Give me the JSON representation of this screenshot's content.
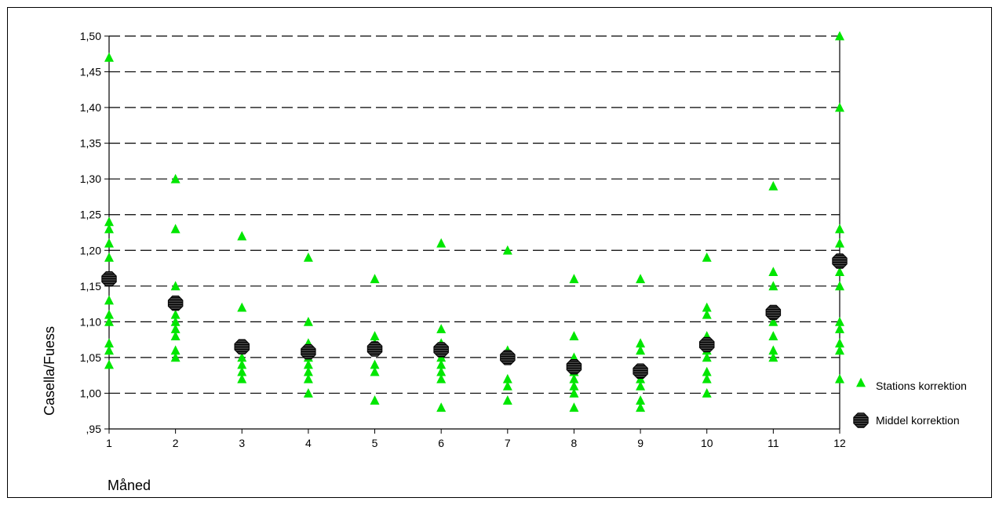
{
  "chart_data": {
    "type": "scatter",
    "title": "",
    "xlabel": "Måned",
    "ylabel": "Casella/Fuess",
    "xlim": [
      1,
      12
    ],
    "ylim": [
      0.95,
      1.5
    ],
    "x_ticks": [
      "1",
      "2",
      "3",
      "4",
      "5",
      "6",
      "7",
      "8",
      "9",
      "10",
      "11",
      "12"
    ],
    "y_ticks": [
      ",95",
      "1,00",
      "1,05",
      "1,10",
      "1,15",
      "1,20",
      "1,25",
      "1,30",
      "1,35",
      "1,40",
      "1,45",
      "1,50"
    ],
    "grid": "horizontal dashed",
    "legend_position": "right",
    "series": [
      {
        "name": "Stations korrektion",
        "marker": "triangle",
        "color": "#00e600",
        "points": [
          [
            1,
            1.47
          ],
          [
            1,
            1.24
          ],
          [
            1,
            1.23
          ],
          [
            1,
            1.21
          ],
          [
            1,
            1.19
          ],
          [
            1,
            1.13
          ],
          [
            1,
            1.11
          ],
          [
            1,
            1.1
          ],
          [
            1,
            1.07
          ],
          [
            1,
            1.06
          ],
          [
            1,
            1.04
          ],
          [
            2,
            1.3
          ],
          [
            2,
            1.23
          ],
          [
            2,
            1.15
          ],
          [
            2,
            1.11
          ],
          [
            2,
            1.1
          ],
          [
            2,
            1.09
          ],
          [
            2,
            1.08
          ],
          [
            2,
            1.06
          ],
          [
            2,
            1.05
          ],
          [
            3,
            1.22
          ],
          [
            3,
            1.12
          ],
          [
            3,
            1.05
          ],
          [
            3,
            1.04
          ],
          [
            3,
            1.03
          ],
          [
            3,
            1.02
          ],
          [
            4,
            1.19
          ],
          [
            4,
            1.1
          ],
          [
            4,
            1.07
          ],
          [
            4,
            1.05
          ],
          [
            4,
            1.04
          ],
          [
            4,
            1.03
          ],
          [
            4,
            1.02
          ],
          [
            4,
            1.0
          ],
          [
            5,
            1.16
          ],
          [
            5,
            1.08
          ],
          [
            5,
            1.07
          ],
          [
            5,
            1.04
          ],
          [
            5,
            1.03
          ],
          [
            5,
            0.99
          ],
          [
            6,
            1.21
          ],
          [
            6,
            1.09
          ],
          [
            6,
            1.07
          ],
          [
            6,
            1.05
          ],
          [
            6,
            1.04
          ],
          [
            6,
            1.03
          ],
          [
            6,
            1.02
          ],
          [
            6,
            0.98
          ],
          [
            7,
            1.2
          ],
          [
            7,
            1.06
          ],
          [
            7,
            1.02
          ],
          [
            7,
            1.01
          ],
          [
            7,
            0.99
          ],
          [
            8,
            1.16
          ],
          [
            8,
            1.08
          ],
          [
            8,
            1.05
          ],
          [
            8,
            1.03
          ],
          [
            8,
            1.02
          ],
          [
            8,
            1.01
          ],
          [
            8,
            1.0
          ],
          [
            8,
            0.98
          ],
          [
            9,
            1.16
          ],
          [
            9,
            1.07
          ],
          [
            9,
            1.06
          ],
          [
            9,
            1.02
          ],
          [
            9,
            1.01
          ],
          [
            9,
            0.99
          ],
          [
            9,
            0.98
          ],
          [
            10,
            1.19
          ],
          [
            10,
            1.12
          ],
          [
            10,
            1.11
          ],
          [
            10,
            1.08
          ],
          [
            10,
            1.06
          ],
          [
            10,
            1.05
          ],
          [
            10,
            1.03
          ],
          [
            10,
            1.02
          ],
          [
            10,
            1.0
          ],
          [
            11,
            1.29
          ],
          [
            11,
            1.17
          ],
          [
            11,
            1.15
          ],
          [
            11,
            1.11
          ],
          [
            11,
            1.1
          ],
          [
            11,
            1.08
          ],
          [
            11,
            1.06
          ],
          [
            11,
            1.05
          ],
          [
            12,
            1.5
          ],
          [
            12,
            1.4
          ],
          [
            12,
            1.23
          ],
          [
            12,
            1.21
          ],
          [
            12,
            1.17
          ],
          [
            12,
            1.15
          ],
          [
            12,
            1.1
          ],
          [
            12,
            1.09
          ],
          [
            12,
            1.07
          ],
          [
            12,
            1.06
          ],
          [
            12,
            1.02
          ]
        ]
      },
      {
        "name": "Middel korrektion",
        "marker": "octagon",
        "color": "#222222",
        "points": [
          [
            1,
            1.16
          ],
          [
            2,
            1.126
          ],
          [
            3,
            1.065
          ],
          [
            4,
            1.058
          ],
          [
            5,
            1.062
          ],
          [
            6,
            1.061
          ],
          [
            7,
            1.05
          ],
          [
            8,
            1.037
          ],
          [
            9,
            1.031
          ],
          [
            10,
            1.068
          ],
          [
            11,
            1.113
          ],
          [
            12,
            1.185
          ]
        ]
      }
    ]
  }
}
